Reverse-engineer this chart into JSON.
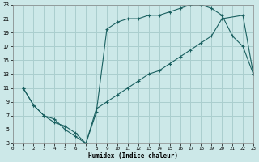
{
  "xlabel": "Humidex (Indice chaleur)",
  "bg_color": "#cce8e8",
  "grid_color": "#aacece",
  "line_color": "#1a6060",
  "xlim": [
    0,
    23
  ],
  "ylim": [
    3,
    23
  ],
  "xticks": [
    0,
    1,
    2,
    3,
    4,
    5,
    6,
    7,
    8,
    9,
    10,
    11,
    12,
    13,
    14,
    15,
    16,
    17,
    18,
    19,
    20,
    21,
    22,
    23
  ],
  "yticks": [
    3,
    5,
    7,
    9,
    11,
    13,
    15,
    17,
    19,
    21,
    23
  ],
  "line1_x": [
    1,
    2,
    3,
    4,
    5,
    6,
    7,
    8,
    9,
    10,
    11,
    12,
    13,
    14,
    15,
    16,
    17,
    18,
    19,
    20,
    21,
    22,
    23
  ],
  "line1_y": [
    11,
    8.5,
    7,
    6.5,
    5,
    4,
    3,
    7.5,
    19.5,
    20.5,
    21,
    21,
    21.5,
    21.5,
    22,
    22.5,
    23,
    23,
    22.5,
    21.5,
    18.5,
    17,
    13
  ],
  "line2_x": [
    1,
    2,
    3,
    4,
    5,
    6,
    7,
    8,
    9,
    10,
    11,
    12,
    13,
    14,
    15,
    16,
    17,
    18,
    19,
    20,
    22,
    23
  ],
  "line2_y": [
    11,
    8.5,
    7,
    6,
    5.5,
    4.5,
    3,
    8,
    9,
    10,
    11,
    12,
    13,
    13.5,
    14.5,
    15.5,
    16.5,
    17.5,
    18.5,
    21,
    21.5,
    13
  ]
}
